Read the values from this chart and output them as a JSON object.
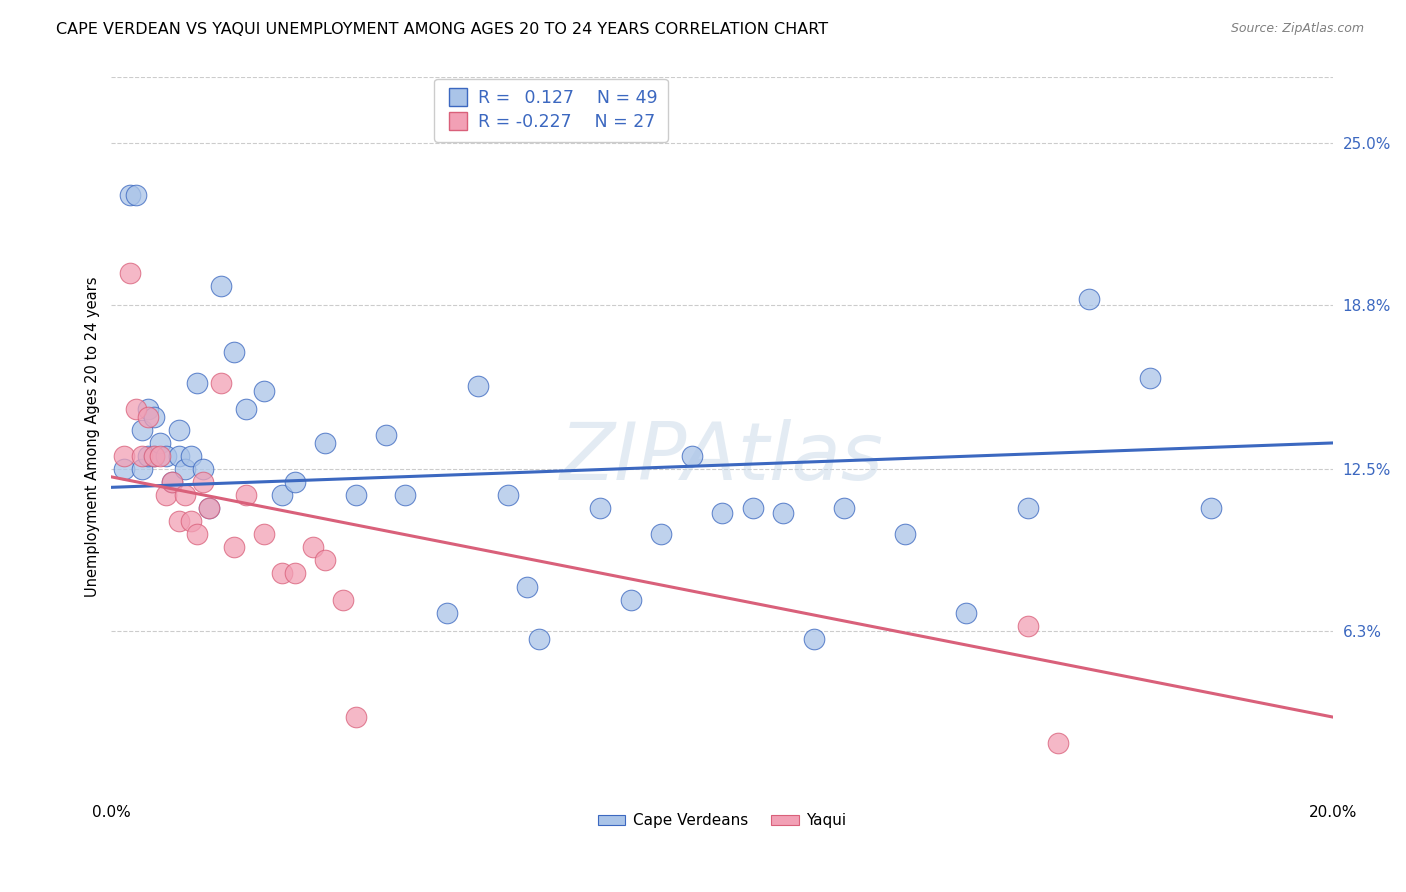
{
  "title": "CAPE VERDEAN VS YAQUI UNEMPLOYMENT AMONG AGES 20 TO 24 YEARS CORRELATION CHART",
  "source": "Source: ZipAtlas.com",
  "ylabel": "Unemployment Among Ages 20 to 24 years",
  "xlim": [
    0.0,
    0.2
  ],
  "ylim": [
    0.0,
    0.275
  ],
  "ytick_positions": [
    0.063,
    0.125,
    0.188,
    0.25
  ],
  "ytick_labels": [
    "6.3%",
    "12.5%",
    "18.8%",
    "25.0%"
  ],
  "watermark": "ZIPAtlas",
  "blue_R": "0.127",
  "blue_N": "49",
  "pink_R": "-0.227",
  "pink_N": "27",
  "blue_color": "#aac4e8",
  "pink_color": "#f2a0b5",
  "blue_line_color": "#3c68c0",
  "pink_line_color": "#d9607a",
  "legend_label_blue": "Cape Verdeans",
  "legend_label_pink": "Yaqui",
  "blue_points_x": [
    0.002,
    0.003,
    0.004,
    0.005,
    0.005,
    0.006,
    0.006,
    0.007,
    0.007,
    0.008,
    0.009,
    0.01,
    0.011,
    0.011,
    0.012,
    0.013,
    0.014,
    0.015,
    0.016,
    0.018,
    0.02,
    0.022,
    0.025,
    0.028,
    0.03,
    0.035,
    0.04,
    0.045,
    0.048,
    0.055,
    0.06,
    0.065,
    0.068,
    0.07,
    0.08,
    0.085,
    0.09,
    0.095,
    0.1,
    0.105,
    0.11,
    0.115,
    0.12,
    0.13,
    0.14,
    0.15,
    0.16,
    0.17,
    0.18
  ],
  "blue_points_y": [
    0.125,
    0.23,
    0.23,
    0.14,
    0.125,
    0.148,
    0.13,
    0.145,
    0.13,
    0.135,
    0.13,
    0.12,
    0.14,
    0.13,
    0.125,
    0.13,
    0.158,
    0.125,
    0.11,
    0.195,
    0.17,
    0.148,
    0.155,
    0.115,
    0.12,
    0.135,
    0.115,
    0.138,
    0.115,
    0.07,
    0.157,
    0.115,
    0.08,
    0.06,
    0.11,
    0.075,
    0.1,
    0.13,
    0.108,
    0.11,
    0.108,
    0.06,
    0.11,
    0.1,
    0.07,
    0.11,
    0.19,
    0.16,
    0.11
  ],
  "pink_points_x": [
    0.002,
    0.003,
    0.004,
    0.005,
    0.006,
    0.007,
    0.008,
    0.009,
    0.01,
    0.011,
    0.012,
    0.013,
    0.014,
    0.015,
    0.016,
    0.018,
    0.02,
    0.022,
    0.025,
    0.028,
    0.03,
    0.033,
    0.035,
    0.038,
    0.04,
    0.15,
    0.155
  ],
  "pink_points_y": [
    0.13,
    0.2,
    0.148,
    0.13,
    0.145,
    0.13,
    0.13,
    0.115,
    0.12,
    0.105,
    0.115,
    0.105,
    0.1,
    0.12,
    0.11,
    0.158,
    0.095,
    0.115,
    0.1,
    0.085,
    0.085,
    0.095,
    0.09,
    0.075,
    0.03,
    0.065,
    0.02
  ],
  "blue_line_x0": 0.0,
  "blue_line_y0": 0.118,
  "blue_line_x1": 0.2,
  "blue_line_y1": 0.135,
  "pink_line_x0": 0.0,
  "pink_line_y0": 0.122,
  "pink_line_x1": 0.2,
  "pink_line_y1": 0.03
}
